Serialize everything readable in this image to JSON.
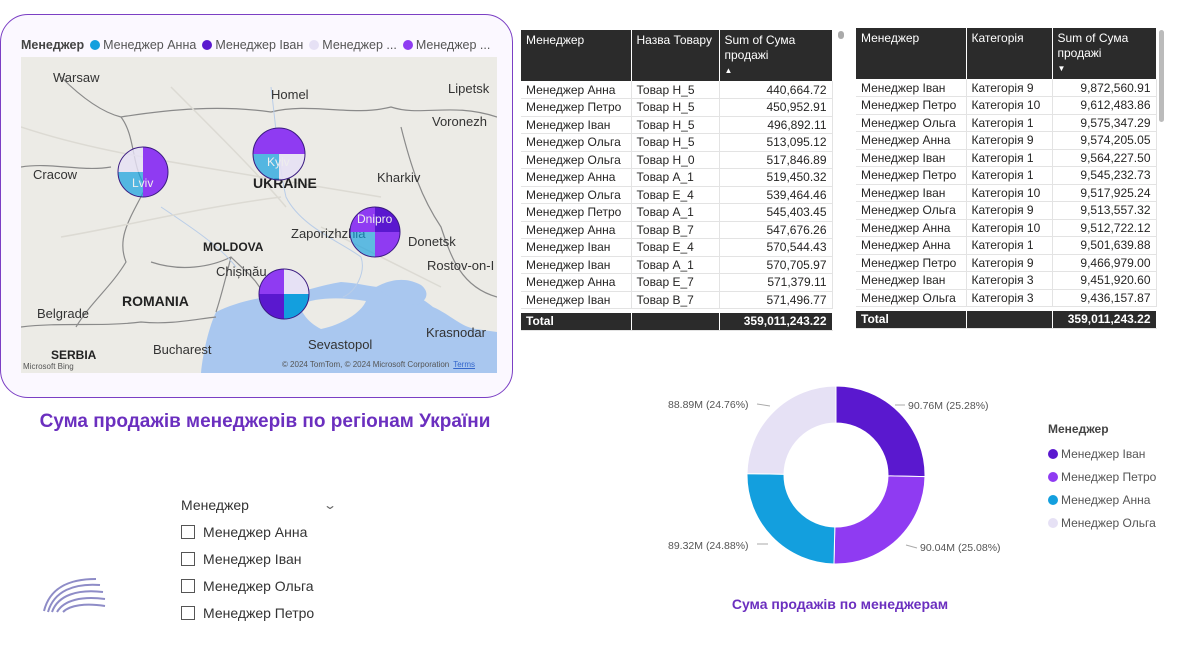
{
  "colors": {
    "ivan": "#5a18cf",
    "petro": "#8f3bf2",
    "anna": "#139fde",
    "olga": "#e6e1f5",
    "accent": "#6b2fbf"
  },
  "map": {
    "legend_title": "Менеджер",
    "legend_items": [
      {
        "label": "Менеджер Анна",
        "color": "#139fde"
      },
      {
        "label": "Менеджер Іван",
        "color": "#5a18cf"
      },
      {
        "label": "Менеджер ...",
        "color": "#e6e1f5"
      },
      {
        "label": "Менеджер ...",
        "color": "#8f3bf2"
      }
    ],
    "cities": {
      "warsaw": "Warsaw",
      "homel": "Homel",
      "lipetsk": "Lipetsk",
      "voronezh": "Voronezh",
      "cracow": "Cracow",
      "lviv": "Lviv",
      "kyiv": "Kyiv",
      "kharkiv": "Kharkiv",
      "dnipro": "Dnipro",
      "zaporizhzhia": "Zaporizhzhia",
      "donetsk": "Donetsk",
      "rostov": "Rostov-on-I",
      "chisinau": "Chișinău",
      "belgrade": "Belgrade",
      "bucharest": "Bucharest",
      "sevastopol": "Sevastopol",
      "krasnodar": "Krasnodar"
    },
    "countries": {
      "ukraine": "UKRAINE",
      "moldova": "MOLDOVA",
      "romania": "ROMANIA",
      "serbia": "SERBIA"
    },
    "copyright": "© 2024 TomTom, © 2024 Microsoft Corporation",
    "terms": "Terms",
    "bing": "Microsoft Bing",
    "title": "Сума продажів менеджерів по регіонам України"
  },
  "slicer": {
    "title": "Менеджер",
    "items": [
      "Менеджер Анна",
      "Менеджер Іван",
      "Менеджер Ольга",
      "Менеджер Петро"
    ]
  },
  "table1": {
    "headers": [
      "Менеджер",
      "Назва Товару",
      "Sum of Сума продажі"
    ],
    "rows": [
      [
        "Менеджер Анна",
        "Товар Н_5",
        "440,664.72"
      ],
      [
        "Менеджер Петро",
        "Товар Н_5",
        "450,952.91"
      ],
      [
        "Менеджер Іван",
        "Товар Н_5",
        "496,892.11"
      ],
      [
        "Менеджер Ольга",
        "Товар Н_5",
        "513,095.12"
      ],
      [
        "Менеджер Ольга",
        "Товар Н_0",
        "517,846.89"
      ],
      [
        "Менеджер Анна",
        "Товар А_1",
        "519,450.32"
      ],
      [
        "Менеджер Ольга",
        "Товар Е_4",
        "539,464.46"
      ],
      [
        "Менеджер Петро",
        "Товар А_1",
        "545,403.45"
      ],
      [
        "Менеджер Анна",
        "Товар В_7",
        "547,676.26"
      ],
      [
        "Менеджер Іван",
        "Товар Е_4",
        "570,544.43"
      ],
      [
        "Менеджер Іван",
        "Товар А_1",
        "570,705.97"
      ],
      [
        "Менеджер Анна",
        "Товар Е_7",
        "571,379.11"
      ],
      [
        "Менеджер Іван",
        "Товар В_7",
        "571,496.77"
      ]
    ],
    "total_label": "Total",
    "total_value": "359,011,243.22"
  },
  "table2": {
    "headers": [
      "Менеджер",
      "Категорія",
      "Sum of Сума продажі"
    ],
    "rows": [
      [
        "Менеджер Іван",
        "Категорія 9",
        "9,872,560.91"
      ],
      [
        "Менеджер Петро",
        "Категорія 10",
        "9,612,483.86"
      ],
      [
        "Менеджер Ольга",
        "Категорія 1",
        "9,575,347.29"
      ],
      [
        "Менеджер Анна",
        "Категорія 9",
        "9,574,205.05"
      ],
      [
        "Менеджер Іван",
        "Категорія 1",
        "9,564,227.50"
      ],
      [
        "Менеджер Петро",
        "Категорія 1",
        "9,545,232.73"
      ],
      [
        "Менеджер Іван",
        "Категорія 10",
        "9,517,925.24"
      ],
      [
        "Менеджер Ольга",
        "Категорія 9",
        "9,513,557.32"
      ],
      [
        "Менеджер Анна",
        "Категорія 10",
        "9,512,722.12"
      ],
      [
        "Менеджер Анна",
        "Категорія 1",
        "9,501,639.88"
      ],
      [
        "Менеджер Петро",
        "Категорія 9",
        "9,466,979.00"
      ],
      [
        "Менеджер Іван",
        "Категорія 3",
        "9,451,920.60"
      ],
      [
        "Менеджер Ольга",
        "Категорія 3",
        "9,436,157.87"
      ]
    ],
    "total_label": "Total",
    "total_value": "359,011,243.22"
  },
  "chart_data": {
    "type": "pie",
    "variant": "donut",
    "title": "Сума продажів по менеджерам",
    "legend_title": "Менеджер",
    "legend_position": "right",
    "categories": [
      "Менеджер Іван",
      "Менеджер Петро",
      "Менеджер Анна",
      "Менеджер Ольга"
    ],
    "values": [
      90.76,
      90.04,
      89.32,
      88.89
    ],
    "unit": "M",
    "data_labels": [
      "90.76M (25.28%)",
      "90.04M (25.08%)",
      "89.32M (24.88%)",
      "88.89M (24.76%)"
    ],
    "colors": [
      "#5a18cf",
      "#8f3bf2",
      "#139fde",
      "#e6e1f5"
    ]
  }
}
